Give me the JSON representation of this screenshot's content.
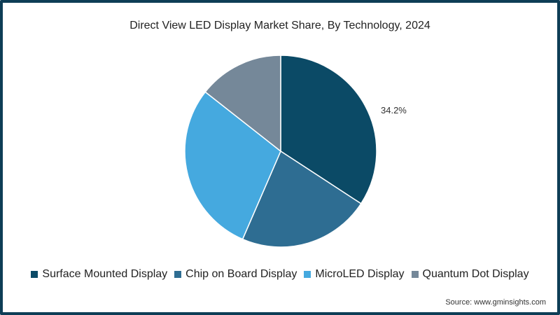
{
  "chart_data": {
    "type": "pie",
    "title": "Direct View LED Display Market Share, By Technology, 2024",
    "categories": [
      "Surface Mounted Display",
      "Chip on Board Display",
      "MicroLED Display",
      "Quantum Dot Display"
    ],
    "values": [
      34.2,
      22.3,
      29.1,
      14.4
    ],
    "colors": [
      "#0b4a66",
      "#2e6d92",
      "#45a9df",
      "#758899"
    ],
    "data_labels": [
      {
        "category": "Surface Mounted Display",
        "text": "34.2%"
      }
    ],
    "legend_position": "bottom",
    "start_angle_deg": 0,
    "direction": "clockwise"
  },
  "title": "Direct View LED Display Market Share, By Technology, 2024",
  "label_smd": "34.2%",
  "legend": [
    {
      "label": "Surface Mounted Display",
      "color": "#0b4a66"
    },
    {
      "label": "Chip on Board Display",
      "color": "#2e6d92"
    },
    {
      "label": "MicroLED Display",
      "color": "#45a9df"
    },
    {
      "label": "Quantum Dot Display",
      "color": "#758899"
    }
  ],
  "source": "Source: www.gminsights.com"
}
